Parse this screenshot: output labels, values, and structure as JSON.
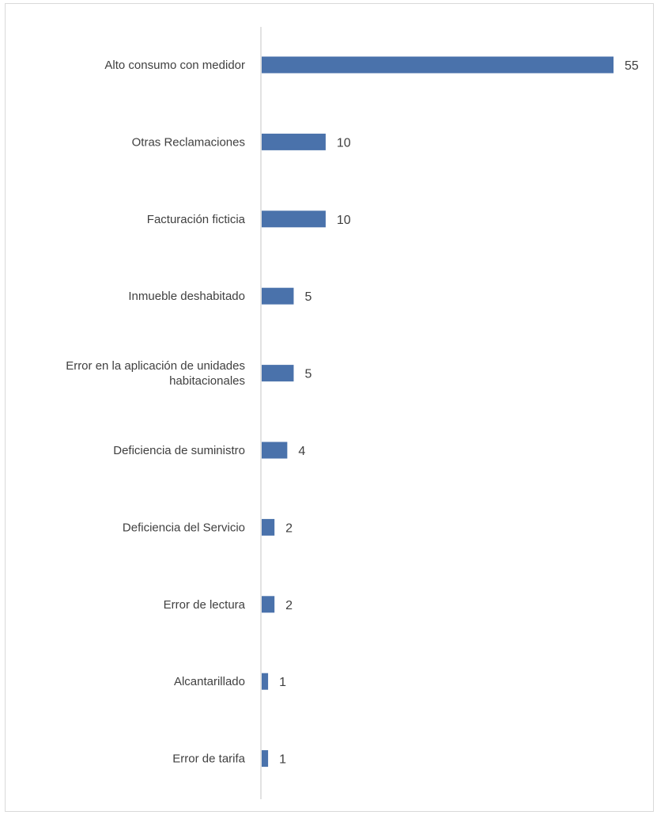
{
  "chart_data": {
    "type": "bar",
    "orientation": "horizontal",
    "title": "",
    "xlabel": "",
    "ylabel": "",
    "categories": [
      "Alto consumo con medidor",
      "Otras Reclamaciones",
      "Facturación ficticia",
      "Inmueble deshabitado",
      "Error en la aplicación de unidades habitacionales",
      "Deficiencia de suministro",
      "Deficiencia del Servicio",
      "Error de lectura",
      "Alcantarillado",
      "Error de tarifa"
    ],
    "category_lines": [
      [
        "Alto consumo con medidor"
      ],
      [
        "Otras Reclamaciones"
      ],
      [
        "Facturación ficticia"
      ],
      [
        "Inmueble deshabitado"
      ],
      [
        "Error en la aplicación de unidades",
        "habitacionales"
      ],
      [
        "Deficiencia de suministro"
      ],
      [
        "Deficiencia del Servicio"
      ],
      [
        "Error de lectura"
      ],
      [
        "Alcantarillado"
      ],
      [
        "Error de tarifa"
      ]
    ],
    "values": [
      55,
      10,
      10,
      5,
      5,
      4,
      2,
      2,
      1,
      1
    ],
    "data_labels": [
      "55",
      "10",
      "10",
      "5",
      "5",
      "4",
      "2",
      "2",
      "1",
      "1"
    ],
    "xlim": [
      0,
      55
    ],
    "grid": false,
    "legend": "none",
    "bar_color": "#4a72ab",
    "axis_color": "#d9d9d9",
    "text_color": "#404040"
  }
}
